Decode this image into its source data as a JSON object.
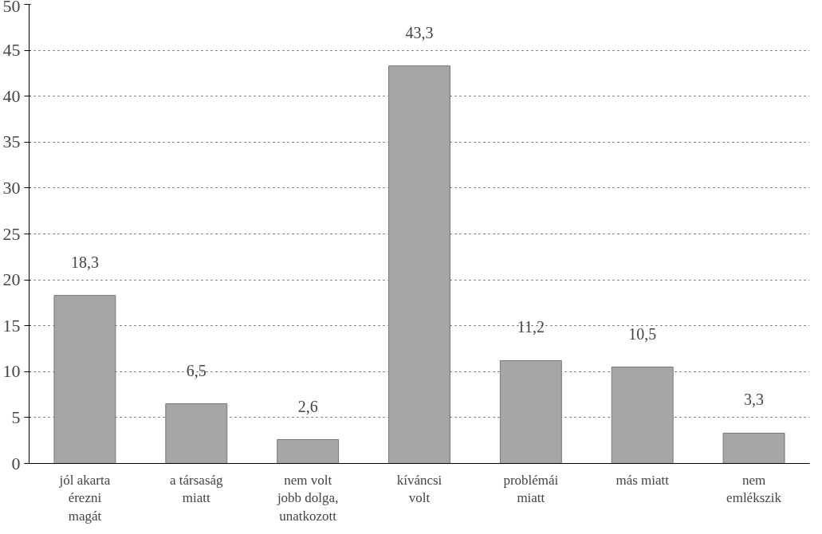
{
  "chart_data": {
    "type": "bar",
    "categories": [
      "jól akarta\nérezni\nmagát",
      "a társaság\nmiatt",
      "nem volt\njobb dolga,\nunatkozott",
      "kíváncsi\nvolt",
      "problémái\nmiatt",
      "más miatt",
      "nem\nemlékszik"
    ],
    "values": [
      18.3,
      6.5,
      2.6,
      43.3,
      11.2,
      10.5,
      3.3
    ],
    "value_labels": [
      "18,3",
      "6,5",
      "2,6",
      "43,3",
      "11,2",
      "10,5",
      "3,3"
    ],
    "color": "#a6a6a6",
    "ylim": [
      0,
      50
    ],
    "yticks": [
      0,
      5,
      10,
      15,
      20,
      25,
      30,
      35,
      40,
      45,
      50
    ],
    "grid": "y"
  }
}
